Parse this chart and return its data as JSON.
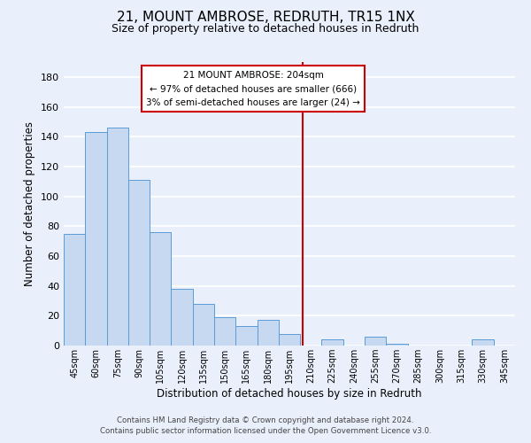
{
  "title": "21, MOUNT AMBROSE, REDRUTH, TR15 1NX",
  "subtitle": "Size of property relative to detached houses in Redruth",
  "xlabel": "Distribution of detached houses by size in Redruth",
  "ylabel": "Number of detached properties",
  "footnote1": "Contains HM Land Registry data © Crown copyright and database right 2024.",
  "footnote2": "Contains public sector information licensed under the Open Government Licence v3.0.",
  "bar_labels": [
    "45sqm",
    "60sqm",
    "75sqm",
    "90sqm",
    "105sqm",
    "120sqm",
    "135sqm",
    "150sqm",
    "165sqm",
    "180sqm",
    "195sqm",
    "210sqm",
    "225sqm",
    "240sqm",
    "255sqm",
    "270sqm",
    "285sqm",
    "300sqm",
    "315sqm",
    "330sqm",
    "345sqm"
  ],
  "bar_values": [
    75,
    143,
    146,
    111,
    76,
    38,
    28,
    19,
    13,
    17,
    8,
    0,
    4,
    0,
    6,
    1,
    0,
    0,
    0,
    4,
    0
  ],
  "bar_color": "#c6d9f0",
  "bar_edge_color": "#5b9bd5",
  "ylim": [
    0,
    190
  ],
  "yticks": [
    0,
    20,
    40,
    60,
    80,
    100,
    120,
    140,
    160,
    180
  ],
  "vline_color": "#cc0000",
  "annotation_line1": "21 MOUNT AMBROSE: 204sqm",
  "annotation_line2": "← 97% of detached houses are smaller (666)",
  "annotation_line3": "3% of semi-detached houses are larger (24) →",
  "background_color": "#eaf0fb",
  "plot_bg_color": "#eaf0fb",
  "grid_color": "#ffffff",
  "title_fontsize": 11,
  "subtitle_fontsize": 9,
  "annotation_box_color": "#ffffff",
  "annotation_box_edge": "#cc0000"
}
